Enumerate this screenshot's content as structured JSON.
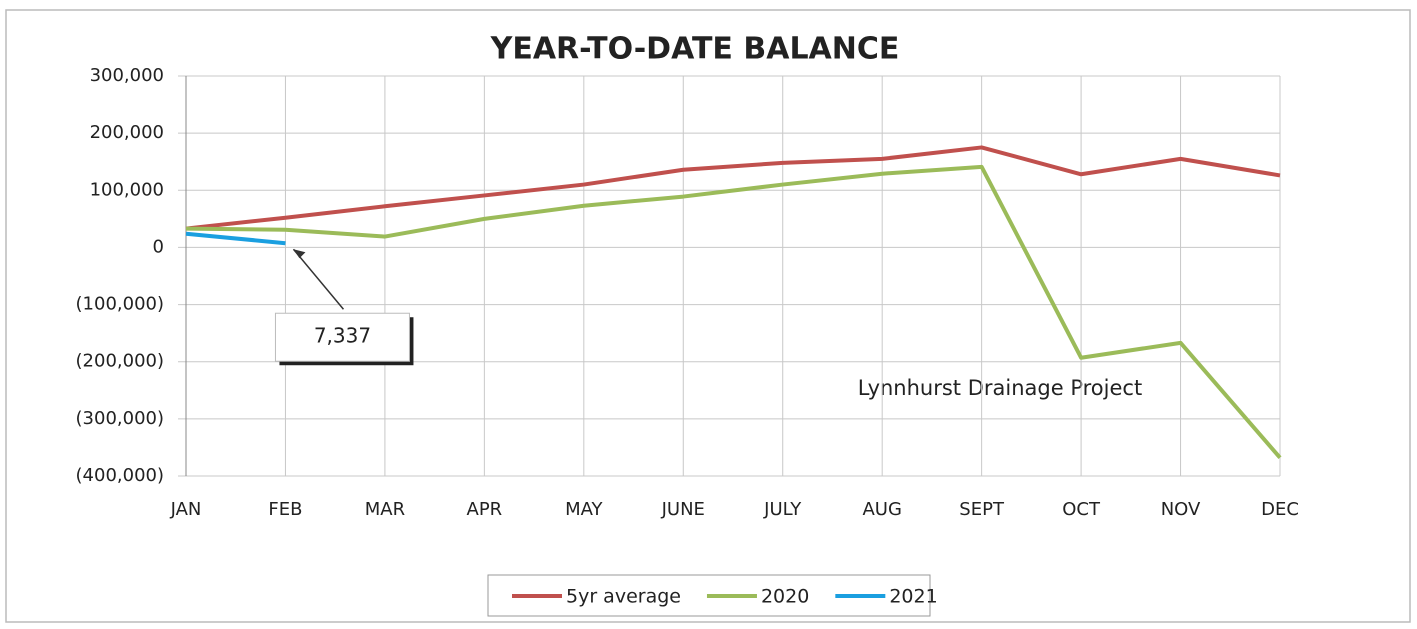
{
  "chart_data": {
    "type": "line",
    "title": "YEAR-TO-DATE BALANCE",
    "categories": [
      "JAN",
      "FEB",
      "MAR",
      "APR",
      "MAY",
      "JUNE",
      "JULY",
      "AUG",
      "SEPT",
      "OCT",
      "NOV",
      "DEC"
    ],
    "series": [
      {
        "name": "5yr average",
        "color": "#c0504d",
        "values": [
          33000,
          52000,
          72000,
          91000,
          110000,
          136000,
          148000,
          155000,
          175000,
          128000,
          155000,
          126000
        ]
      },
      {
        "name": "2020",
        "color": "#9bbb59",
        "values": [
          33000,
          31000,
          19000,
          50000,
          73000,
          89000,
          110000,
          129000,
          141000,
          -193000,
          -167000,
          -368000
        ]
      },
      {
        "name": "2021",
        "color": "#1a9fe0",
        "values": [
          24000,
          7337,
          null,
          null,
          null,
          null,
          null,
          null,
          null,
          null,
          null,
          null
        ],
        "value_labels": [
          null,
          "7,337",
          null,
          null,
          null,
          null,
          null,
          null,
          null,
          null,
          null,
          null
        ]
      }
    ],
    "ylim": [
      -400000,
      300000
    ],
    "yticks": [
      {
        "value": -400000,
        "label": "(400,000)"
      },
      {
        "value": -300000,
        "label": "(300,000)"
      },
      {
        "value": -200000,
        "label": "(200,000)"
      },
      {
        "value": -100000,
        "label": "(100,000)"
      },
      0,
      {
        "value": 100000,
        "label": "100,000"
      },
      {
        "value": 200000,
        "label": "200,000"
      },
      {
        "value": 300000,
        "label": "300,000"
      }
    ],
    "grid": true,
    "legend": "bottom",
    "annotations": [
      "Lynnhurst Drainage Project"
    ]
  }
}
